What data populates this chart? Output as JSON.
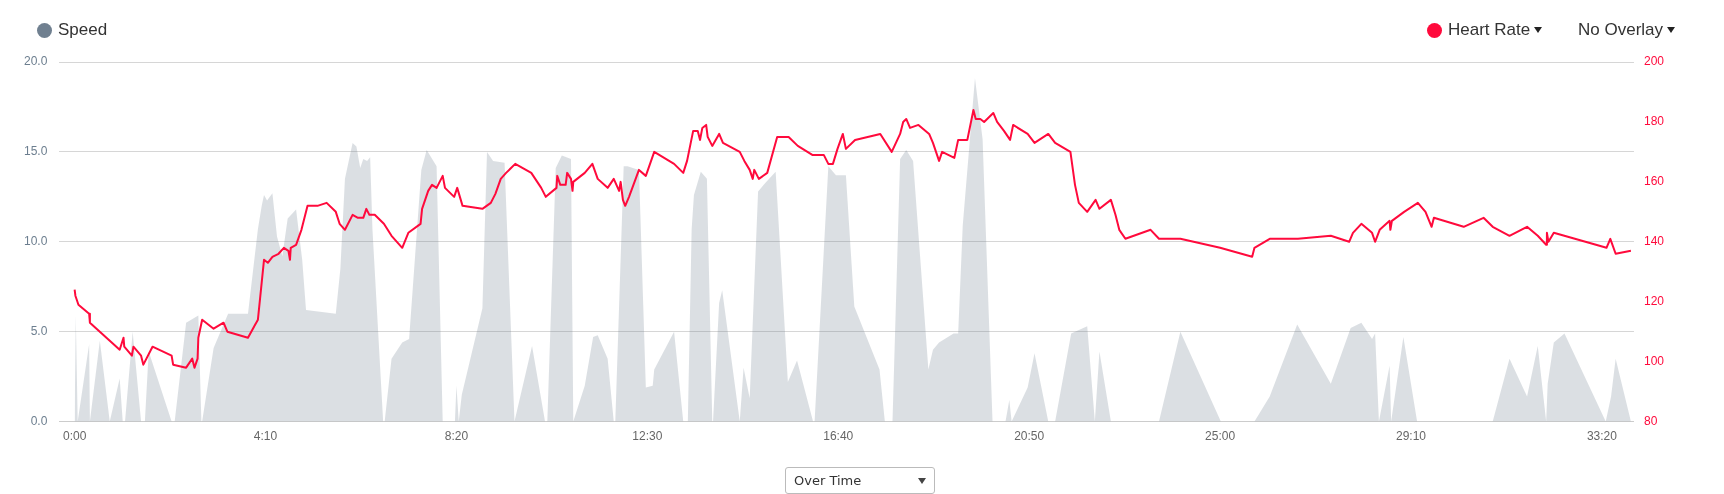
{
  "chart_data": {
    "type": "line",
    "legend": "top",
    "grid": "y",
    "xlim": [
      -20,
      2042
    ],
    "xticks": [
      {
        "value": 0,
        "label": "0:00"
      },
      {
        "value": 250,
        "label": "4:10"
      },
      {
        "value": 500,
        "label": "8:20"
      },
      {
        "value": 750,
        "label": "12:30"
      },
      {
        "value": 1000,
        "label": "16:40"
      },
      {
        "value": 1250,
        "label": "20:50"
      },
      {
        "value": 1500,
        "label": "25:00"
      },
      {
        "value": 1750,
        "label": "29:10"
      },
      {
        "value": 2000,
        "label": "33:20"
      }
    ],
    "ylim": [
      0,
      20
    ],
    "yticks": [
      {
        "value": 0,
        "label": "0.0"
      },
      {
        "value": 5,
        "label": "5.0"
      },
      {
        "value": 10,
        "label": "10.0"
      },
      {
        "value": 15,
        "label": "15.0"
      },
      {
        "value": 20,
        "label": "20.0"
      }
    ],
    "y2lim": [
      80,
      200
    ],
    "y2ticks": [
      80,
      100,
      120,
      140,
      160,
      180,
      200
    ],
    "annotations": [
      "No Overlay",
      "Over Time"
    ],
    "series": [
      {
        "name": "Speed",
        "type": "area",
        "color": "#708090",
        "x": [
          0,
          1.5,
          4,
          19,
          20,
          33,
          46,
          59,
          63,
          66,
          76,
          87,
          92,
          97,
          127,
          131,
          146,
          162,
          166,
          167,
          182,
          201,
          227,
          240,
          245,
          248,
          252,
          259,
          265,
          272,
          279,
          290,
          298,
          303,
          342,
          348,
          354,
          364,
          369,
          374,
          378,
          383,
          387,
          390,
          404,
          406,
          415,
          429,
          438,
          454,
          461,
          474,
          482,
          498,
          500,
          503,
          507,
          534,
          540,
          548,
          563,
          576,
          599,
          616,
          619,
          630,
          638,
          650,
          653,
          668,
          679,
          685,
          698,
          706,
          708,
          719,
          724,
          739,
          748,
          757,
          759,
          785,
          797,
          803,
          808,
          811,
          820,
          828,
          835,
          836,
          844,
          848,
          871,
          876,
          884,
          895,
          905,
          918,
          934,
          946,
          967,
          969,
          987,
          997,
          1010,
          1021,
          1054,
          1061,
          1071,
          1081,
          1089,
          1098,
          1118,
          1124,
          1132,
          1151,
          1157,
          1163,
          1179,
          1189,
          1202,
          1219,
          1224,
          1227,
          1248,
          1257,
          1275,
          1284,
          1305,
          1326,
          1336,
          1342,
          1357,
          1420,
          1448,
          1501,
          1545,
          1565,
          1601,
          1645,
          1671,
          1685,
          1699,
          1703,
          1708,
          1722,
          1724,
          1740,
          1758,
          1857,
          1879,
          1902,
          1916,
          1927,
          1929,
          1937,
          1951,
          2005,
          2012,
          2018,
          2038
        ],
        "values": [
          0,
          5.9,
          0,
          4.3,
          0,
          4.5,
          0,
          2.4,
          0,
          0,
          5.0,
          0,
          0,
          3.9,
          0,
          0,
          5.5,
          5.9,
          0,
          0,
          4.1,
          6.0,
          6.0,
          10.7,
          12.0,
          12.6,
          12.3,
          12.7,
          10.3,
          9.2,
          11.3,
          11.8,
          9.0,
          6.2,
          6.0,
          8.5,
          13.5,
          15.5,
          15.3,
          14.1,
          14.6,
          14.5,
          14.7,
          10.7,
          0,
          0,
          3.5,
          4.4,
          4.6,
          14.0,
          15.1,
          14.2,
          0,
          0,
          2.0,
          0,
          1.5,
          6.3,
          15.0,
          14.5,
          14.4,
          0,
          4.2,
          0,
          0,
          14.1,
          14.8,
          14.6,
          0,
          2.0,
          4.7,
          4.8,
          3.5,
          0,
          0,
          14.2,
          14.2,
          14.0,
          1.9,
          2.0,
          2.9,
          5.0,
          0,
          0,
          10.7,
          12.6,
          13.9,
          13.5,
          0,
          0,
          6.6,
          7.3,
          0,
          3.0,
          1.3,
          12.8,
          13.3,
          13.9,
          2.2,
          3.4,
          0,
          0,
          14.2,
          13.7,
          13.7,
          6.4,
          2.9,
          0,
          0,
          14.6,
          15.1,
          14.5,
          2.9,
          4.0,
          4.4,
          4.9,
          4.9,
          10.9,
          19.1,
          15.7,
          0,
          0,
          1.2,
          0,
          1.9,
          3.8,
          0,
          0,
          4.9,
          5.3,
          0,
          3.9,
          0,
          0,
          5.0,
          0,
          0,
          1.4,
          5.4,
          2.1,
          5.2,
          5.5,
          4.6,
          4.9,
          0,
          3.1,
          0,
          4.7,
          0,
          0,
          3.5,
          1.4,
          4.2,
          0,
          2.1,
          4.4,
          4.9,
          0,
          1.4,
          3.5,
          0
        ]
      },
      {
        "name": "Heart Rate",
        "type": "line",
        "axis": "y2",
        "color": "#ff0a3c",
        "x": [
          0,
          1,
          5,
          19,
          20,
          59,
          64,
          65,
          75,
          77,
          87,
          90,
          102,
          127,
          129,
          146,
          154,
          157,
          161,
          162,
          167,
          182,
          195,
          200,
          227,
          240,
          248,
          253,
          259,
          267,
          274,
          280,
          282,
          283,
          290,
          297,
          305,
          318,
          330,
          342,
          347,
          354,
          364,
          371,
          378,
          382,
          386,
          393,
          405,
          415,
          429,
          437,
          453,
          455,
          463,
          468,
          474,
          482,
          485,
          497,
          501,
          508,
          534,
          545,
          551,
          558,
          565,
          577,
          598,
          611,
          617,
          631,
          632,
          636,
          643,
          645,
          650,
          652,
          653,
          668,
          678,
          685,
          698,
          706,
          713,
          715,
          718,
          721,
          726,
          739,
          748,
          759,
          785,
          797,
          802,
          810,
          816,
          819,
          822,
          827,
          829,
          835,
          844,
          849,
          871,
          877,
          884,
          888,
          890,
          896,
          907,
          920,
          935,
          947,
          966,
          981,
          987,
          993,
          999,
          1006,
          1010,
          1022,
          1055,
          1070,
          1081,
          1085,
          1089,
          1094,
          1105,
          1119,
          1124,
          1132,
          1136,
          1152,
          1157,
          1169,
          1177,
          1180,
          1186,
          1191,
          1203,
          1208,
          1217,
          1225,
          1229,
          1248,
          1257,
          1275,
          1284,
          1304,
          1310,
          1315,
          1326,
          1337,
          1342,
          1357,
          1363,
          1368,
          1376,
          1409,
          1420,
          1448,
          1500,
          1542,
          1545,
          1565,
          1602,
          1645,
          1669,
          1674,
          1685,
          1699,
          1703,
          1709,
          1722,
          1723,
          1725,
          1741,
          1759,
          1769,
          1777,
          1780,
          1819,
          1845,
          1857,
          1879,
          1902,
          1916,
          1927,
          1928,
          1930,
          1937,
          2006,
          2011,
          2018,
          2038
        ],
        "values": [
          124,
          122,
          119,
          116,
          113,
          104,
          108,
          105,
          102,
          105,
          102,
          99,
          105,
          102,
          99,
          98,
          101,
          98,
          101,
          108,
          114,
          111,
          113,
          110,
          108,
          114,
          134,
          133,
          135,
          136,
          138,
          137,
          134,
          138,
          139,
          144,
          152,
          152,
          153,
          150,
          146,
          144,
          149,
          148,
          148,
          151,
          149,
          149,
          146,
          142,
          138,
          143,
          146,
          151,
          157,
          159,
          158,
          162,
          158,
          155,
          158,
          152,
          151,
          153,
          156,
          161,
          163,
          166,
          163,
          158,
          155,
          158,
          162,
          159,
          159,
          163,
          161,
          157,
          160,
          163,
          166,
          161,
          158,
          161,
          157,
          160,
          154,
          152,
          155,
          164,
          162,
          170,
          166,
          163,
          167,
          177,
          177,
          174,
          178,
          179,
          175,
          172,
          176,
          173,
          170,
          167,
          164,
          161,
          164,
          161,
          163,
          175,
          175,
          172,
          169,
          169,
          166,
          166,
          171,
          176,
          171,
          174,
          176,
          170,
          176,
          180,
          181,
          178,
          179,
          176,
          173,
          167,
          170,
          168,
          174,
          174,
          184,
          181,
          181,
          180,
          183,
          180,
          177,
          174,
          179,
          176,
          173,
          176,
          173,
          170,
          159,
          153,
          150,
          154,
          151,
          154,
          149,
          144,
          141,
          144,
          141,
          141,
          138,
          135,
          138,
          141,
          141,
          142,
          140,
          143,
          146,
          143,
          140,
          144,
          147,
          144,
          147,
          150,
          153,
          150,
          145,
          148,
          145,
          148,
          145,
          142,
          145,
          142,
          139,
          143,
          140,
          143,
          138,
          141,
          136,
          137
        ]
      }
    ]
  }
}
